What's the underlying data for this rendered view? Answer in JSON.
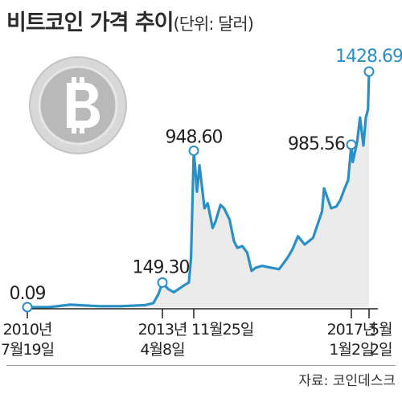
{
  "title": {
    "main": "비트코인 가격 추이",
    "unit": "(단위: 달러)"
  },
  "source": "자료: 코인데스크",
  "colors": {
    "line": "#2a8fc4",
    "area": "#ebebeb",
    "axis": "#222222",
    "coin_light": "#d8d8d8",
    "coin_dark": "#b9b9b9"
  },
  "icon": "bitcoin-icon",
  "chart_data": {
    "type": "area",
    "title": "비트코인 가격 추이",
    "unit": "(단위: 달러)",
    "x_ticks": [
      {
        "date": "2010-07-19",
        "line1": "2010년",
        "line2": "7월19일"
      },
      {
        "date": "2013-04-08",
        "line1": "2013년",
        "line2": "4월8일"
      },
      {
        "date": "2013-11-25",
        "line1": "11월25일",
        "line2": ""
      },
      {
        "date": "2017-01-02",
        "line1": "2017년",
        "line2": "1월2일"
      },
      {
        "date": "2017-05-02",
        "line1": "5월",
        "line2": "2일"
      }
    ],
    "annotations": [
      {
        "date": "2010-07-19",
        "value": 0.09,
        "label": "0.09"
      },
      {
        "date": "2013-04-08",
        "value": 149.3,
        "label": "149.30"
      },
      {
        "date": "2013-11-25",
        "value": 948.6,
        "label": "948.60"
      },
      {
        "date": "2017-01-02",
        "value": 985.56,
        "label": "985.56"
      },
      {
        "date": "2017-05-02",
        "value": 1428.69,
        "label": "1428.69"
      }
    ],
    "series": [
      {
        "x": [
          "2010-07-19",
          "2011-01-01",
          "2011-06-01",
          "2012-01-01",
          "2012-06-01",
          "2012-12-01",
          "2013-02-01",
          "2013-03-10",
          "2013-04-08",
          "2013-05-20",
          "2013-07-01",
          "2013-09-01",
          "2013-10-20",
          "2013-11-05",
          "2013-11-25",
          "2013-12-05",
          "2013-12-18",
          "2014-01-05",
          "2014-02-10",
          "2014-03-05",
          "2014-04-10",
          "2014-05-01",
          "2014-06-05",
          "2014-07-01",
          "2014-08-10",
          "2014-09-10",
          "2014-10-05",
          "2014-11-10",
          "2014-12-15",
          "2015-01-15",
          "2015-02-15",
          "2015-04-01",
          "2015-06-01",
          "2015-08-01",
          "2015-10-01",
          "2015-11-05",
          "2015-12-15",
          "2016-02-01",
          "2016-04-01",
          "2016-06-05",
          "2016-06-20",
          "2016-08-10",
          "2016-09-15",
          "2016-10-15",
          "2016-11-15",
          "2016-12-10",
          "2017-01-02",
          "2017-01-12",
          "2017-02-10",
          "2017-03-02",
          "2017-03-25",
          "2017-04-10",
          "2017-04-25",
          "2017-05-02"
        ],
        "y": [
          0.09,
          0.3,
          15,
          6,
          6,
          12,
          25,
          80,
          149.3,
          110,
          90,
          125,
          150,
          300,
          948.6,
          850,
          700,
          860,
          600,
          630,
          480,
          520,
          620,
          600,
          530,
          400,
          360,
          370,
          330,
          220,
          240,
          250,
          240,
          230,
          300,
          350,
          430,
          380,
          420,
          580,
          720,
          600,
          610,
          650,
          720,
          770,
          985.56,
          880,
          1000,
          1150,
          980,
          1150,
          1200,
          1428.69
        ]
      }
    ]
  }
}
